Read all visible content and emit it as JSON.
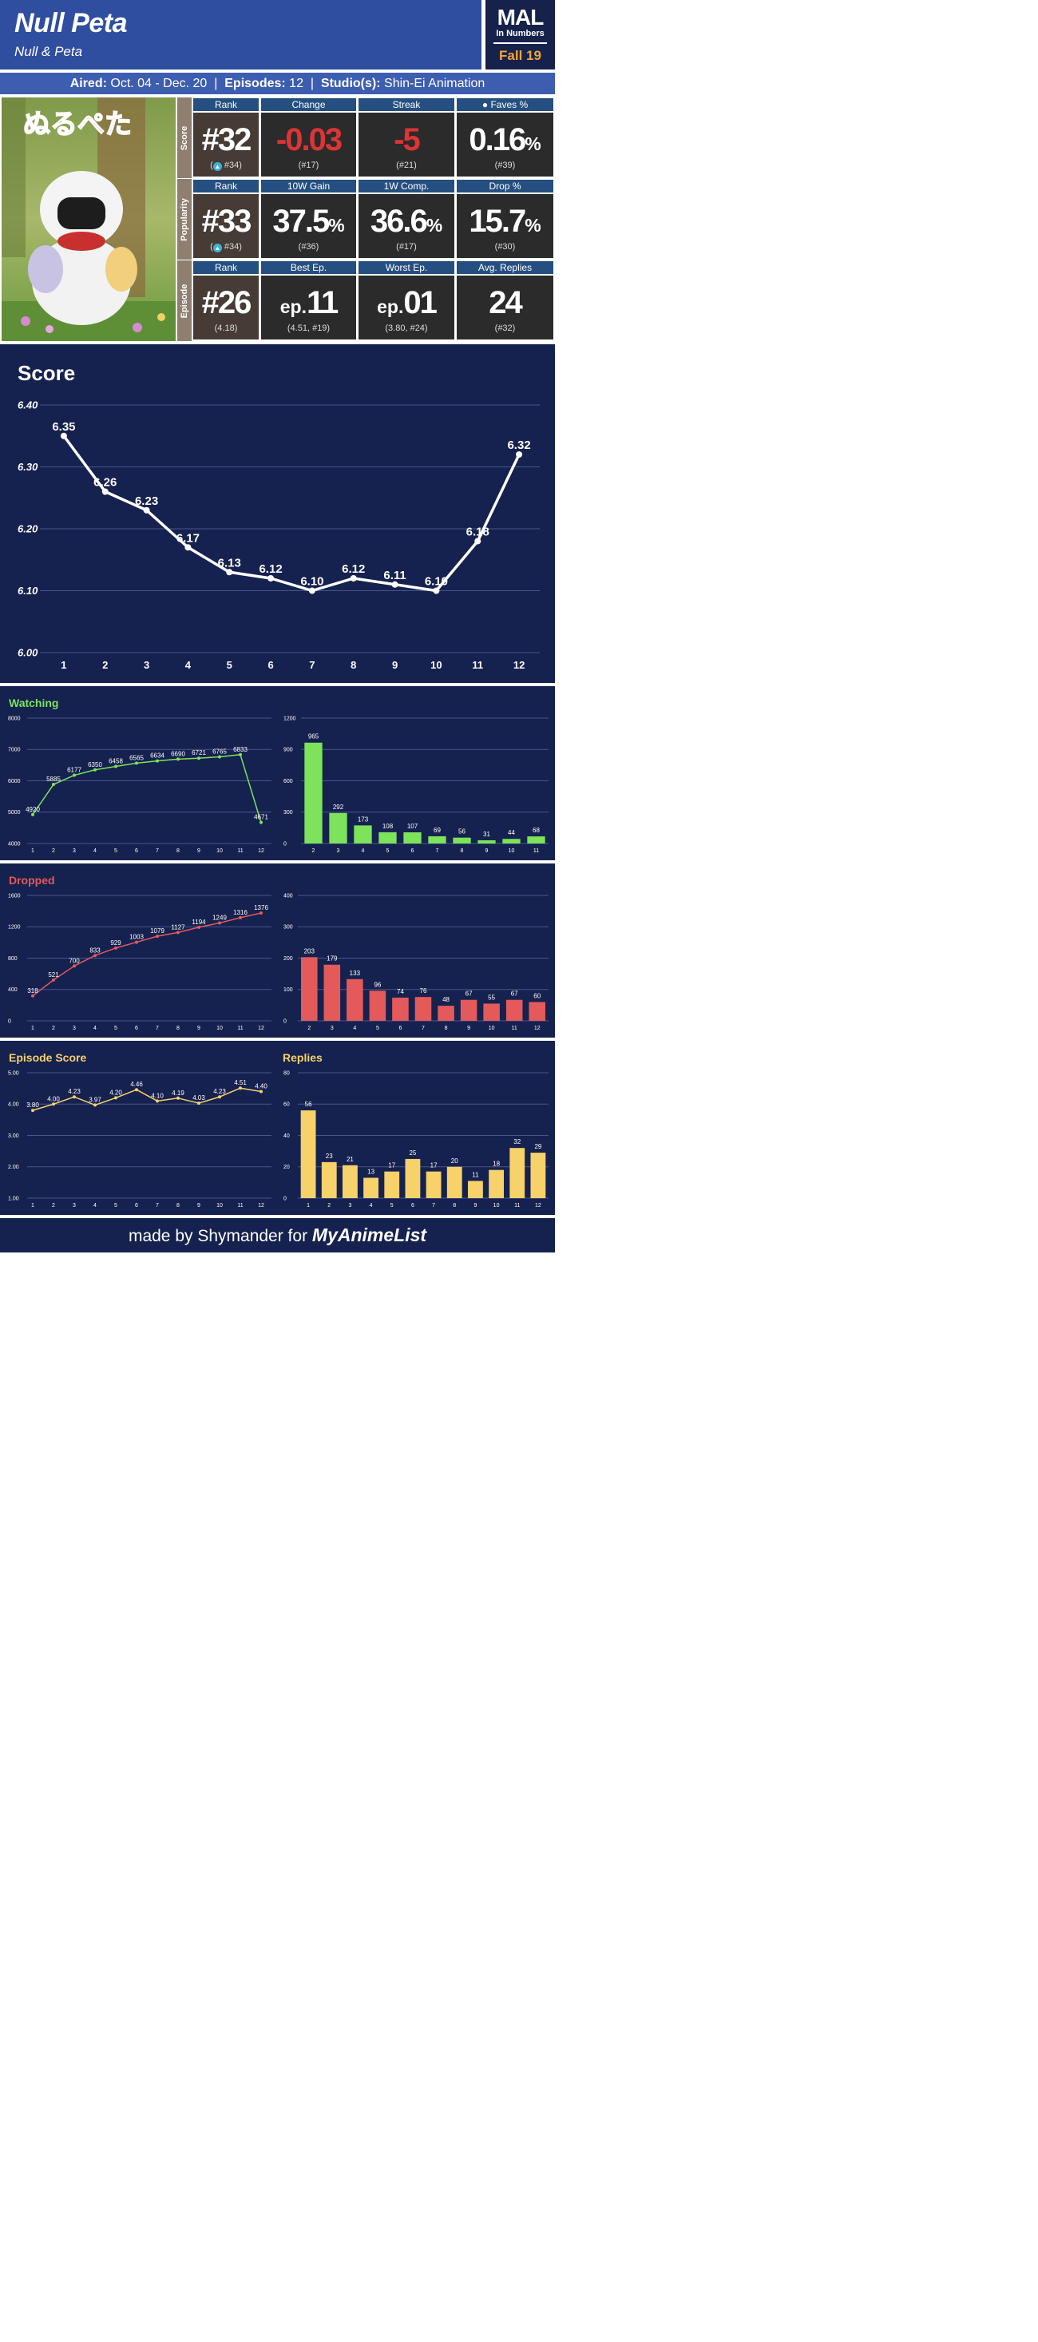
{
  "header": {
    "title": "Null Peta",
    "subtitle": "Null & Peta"
  },
  "badge": {
    "mal": "MAL",
    "in_numbers": "In Numbers",
    "season": "Fall 19"
  },
  "info": {
    "aired_label": "Aired:",
    "aired": "Oct. 04 - Dec. 20",
    "episodes_label": "Episodes:",
    "episodes": "12",
    "studio_label": "Studio(s):",
    "studio": "Shin-Ei Animation"
  },
  "cover": {
    "logo_text": "ぬるぺた"
  },
  "stats": {
    "score": {
      "side": "Score",
      "h": [
        "Rank",
        "Change",
        "Streak",
        "Faves %"
      ],
      "rank": "#32",
      "rank_sub": "#34",
      "change": "-0.03",
      "change_sub": "(#17)",
      "streak": "-5",
      "streak_sub": "(#21)",
      "faves": "0.16",
      "faves_pct": "%",
      "faves_sub": "(#39)",
      "faves_icon": "poop-icon"
    },
    "popularity": {
      "side": "Popularity",
      "h": [
        "Rank",
        "10W Gain",
        "1W Comp.",
        "Drop %"
      ],
      "rank": "#33",
      "rank_sub": "#34",
      "gain": "37.5",
      "gain_pct": "%",
      "gain_sub": "(#36)",
      "comp": "36.6",
      "comp_pct": "%",
      "comp_sub": "(#17)",
      "drop": "15.7",
      "drop_pct": "%",
      "drop_sub": "(#30)"
    },
    "episode": {
      "side": "Episode",
      "h": [
        "Rank",
        "Best Ep.",
        "Worst Ep.",
        "Avg. Replies"
      ],
      "rank": "#26",
      "rank_sub": "(4.18)",
      "ep_prefix": "ep.",
      "best": "11",
      "best_sub": "(4.51, #19)",
      "worst": "01",
      "worst_sub": "(3.80, #24)",
      "replies": "24",
      "replies_sub": "(#32)"
    }
  },
  "footer": {
    "made_by": "made by Shymander for",
    "brand": "MyAnimeList"
  },
  "colors": {
    "green": "#7de35a",
    "red": "#e45a5a",
    "yellow": "#f7d16a",
    "panel": "#15214f"
  },
  "chart_data": [
    {
      "id": "score",
      "type": "line",
      "title": "Score",
      "x": [
        1,
        2,
        3,
        4,
        5,
        6,
        7,
        8,
        9,
        10,
        11,
        12
      ],
      "values": [
        6.35,
        6.26,
        6.23,
        6.17,
        6.13,
        6.12,
        6.1,
        6.12,
        6.11,
        6.1,
        6.18,
        6.32
      ],
      "labels": [
        "6.35",
        "6.26",
        "6.23",
        "6.17",
        "6.13",
        "6.12",
        "6.10",
        "6.12",
        "6.11",
        "6.10",
        "6.18",
        "6.32"
      ],
      "ylim": [
        6.0,
        6.4
      ],
      "yticks": [
        "6.00",
        "6.10",
        "6.20",
        "6.30",
        "6.40"
      ],
      "grid": true
    },
    {
      "id": "watching",
      "type": "line",
      "title": "Watching",
      "x": [
        1,
        2,
        3,
        4,
        5,
        6,
        7,
        8,
        9,
        10,
        11,
        12
      ],
      "values": [
        4920,
        5885,
        6177,
        6350,
        6458,
        6565,
        6634,
        6690,
        6721,
        6765,
        6833,
        4671
      ],
      "ylim": [
        4000,
        8000
      ],
      "yticks": [
        "4000",
        "5000",
        "6000",
        "7000",
        "8000"
      ],
      "grid": true
    },
    {
      "id": "watching-bars",
      "type": "bar",
      "categories": [
        "2",
        "3",
        "4",
        "5",
        "6",
        "7",
        "8",
        "9",
        "10",
        "11"
      ],
      "values": [
        965,
        292,
        173,
        108,
        107,
        69,
        56,
        31,
        44,
        68
      ],
      "ylim": [
        0,
        1200
      ],
      "yticks": [
        "0",
        "300",
        "600",
        "900",
        "1200"
      ],
      "grid": true
    },
    {
      "id": "dropped",
      "type": "line",
      "title": "Dropped",
      "x": [
        1,
        2,
        3,
        4,
        5,
        6,
        7,
        8,
        9,
        10,
        11,
        12
      ],
      "values": [
        318,
        521,
        700,
        833,
        929,
        1003,
        1079,
        1127,
        1194,
        1249,
        1316,
        1376
      ],
      "ylim": [
        0,
        1600
      ],
      "yticks": [
        "0",
        "400",
        "800",
        "1200",
        "1600"
      ],
      "grid": true
    },
    {
      "id": "dropped-bars",
      "type": "bar",
      "categories": [
        "2",
        "3",
        "4",
        "5",
        "6",
        "7",
        "8",
        "9",
        "10",
        "11",
        "12"
      ],
      "values": [
        203,
        179,
        133,
        96,
        74,
        76,
        48,
        67,
        55,
        67,
        60
      ],
      "ylim": [
        0,
        400
      ],
      "yticks": [
        "0",
        "100",
        "200",
        "300",
        "400"
      ],
      "grid": true
    },
    {
      "id": "epscore",
      "type": "line",
      "title": "Episode Score",
      "x": [
        1,
        2,
        3,
        4,
        5,
        6,
        7,
        8,
        9,
        10,
        11,
        12
      ],
      "values": [
        3.8,
        4.0,
        4.23,
        3.97,
        4.2,
        4.46,
        4.1,
        4.19,
        4.03,
        4.23,
        4.51,
        4.4
      ],
      "labels": [
        "3.80",
        "4.00",
        "4.23",
        "3.97",
        "4.20",
        "4.46",
        "4.10",
        "4.19",
        "4.03",
        "4.23",
        "4.51",
        "4.40"
      ],
      "ylim": [
        1,
        5
      ],
      "yticks": [
        "1.00",
        "2.00",
        "3.00",
        "4.00",
        "5.00"
      ],
      "grid": true
    },
    {
      "id": "replies",
      "type": "bar",
      "title": "Replies",
      "categories": [
        "1",
        "2",
        "3",
        "4",
        "5",
        "6",
        "7",
        "8",
        "9",
        "10",
        "11",
        "12"
      ],
      "values": [
        56,
        23,
        21,
        13,
        17,
        25,
        17,
        20,
        11,
        18,
        32,
        29
      ],
      "ylim": [
        0,
        80
      ],
      "yticks": [
        "0",
        "20",
        "40",
        "60",
        "80"
      ],
      "grid": true
    }
  ]
}
